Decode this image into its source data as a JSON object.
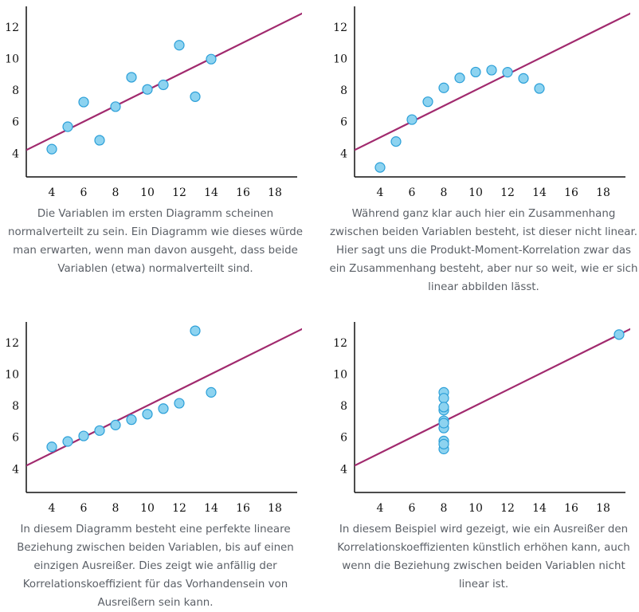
{
  "colors": {
    "regression_line": "#a12a6e",
    "point_fill": "#8dd3f0",
    "point_stroke": "#2b9fd8",
    "caption_text": "#5a5f66"
  },
  "captions": [
    "Die Variablen im ersten Diagramm scheinen normalverteilt zu sein. Ein Diagramm wie dieses würde man erwarten, wenn man davon ausgeht, dass beide Variablen (etwa) normalverteilt sind.",
    "Während ganz klar auch hier ein Zusammenhang zwischen beiden Variablen besteht, ist dieser nicht linear. Hier sagt uns die Produkt-Moment-Korrelation zwar das ein Zusammenhang besteht, aber nur so weit, wie er sich linear abbilden lässt.",
    "In diesem Diagramm besteht eine perfekte lineare Beziehung zwischen beiden Variablen, bis auf einen einzigen Ausreißer. Dies zeigt wie anfällig der Korrelationskoeffizient für das Vorhandensein von Ausreißern sein kann.",
    "In diesem Beispiel wird gezeigt, wie ein Ausreißer den Korrelationskoeffizienten künstlich erhöhen kann, auch wenn die Beziehung zwischen beiden Variablen nicht linear ist."
  ],
  "chart_data": [
    {
      "type": "scatter",
      "xlim": [
        2.4,
        19.4
      ],
      "ylim": [
        2.5,
        13.3
      ],
      "xticks": [
        4,
        6,
        8,
        10,
        12,
        14,
        16,
        18
      ],
      "yticks": [
        4,
        6,
        8,
        10,
        12
      ],
      "points": [
        [
          10,
          8.04
        ],
        [
          8,
          6.95
        ],
        [
          13,
          7.58
        ],
        [
          9,
          8.81
        ],
        [
          11,
          8.33
        ],
        [
          14,
          9.96
        ],
        [
          6,
          7.24
        ],
        [
          4,
          4.26
        ],
        [
          12,
          10.84
        ],
        [
          7,
          4.82
        ],
        [
          5,
          5.68
        ]
      ],
      "regression": {
        "intercept": 3.0,
        "slope": 0.5
      },
      "grid": false
    },
    {
      "type": "scatter",
      "xlim": [
        2.4,
        19.4
      ],
      "ylim": [
        2.5,
        13.3
      ],
      "xticks": [
        4,
        6,
        8,
        10,
        12,
        14,
        16,
        18
      ],
      "yticks": [
        4,
        6,
        8,
        10,
        12
      ],
      "points": [
        [
          10,
          9.14
        ],
        [
          8,
          8.14
        ],
        [
          13,
          8.74
        ],
        [
          9,
          8.77
        ],
        [
          11,
          9.26
        ],
        [
          14,
          8.1
        ],
        [
          6,
          6.13
        ],
        [
          4,
          3.1
        ],
        [
          12,
          9.13
        ],
        [
          7,
          7.26
        ],
        [
          5,
          4.74
        ]
      ],
      "regression": {
        "intercept": 3.0,
        "slope": 0.5
      },
      "grid": false
    },
    {
      "type": "scatter",
      "xlim": [
        2.4,
        19.4
      ],
      "ylim": [
        2.5,
        13.3
      ],
      "xticks": [
        4,
        6,
        8,
        10,
        12,
        14,
        16,
        18
      ],
      "yticks": [
        4,
        6,
        8,
        10,
        12
      ],
      "points": [
        [
          10,
          7.46
        ],
        [
          8,
          6.77
        ],
        [
          13,
          12.74
        ],
        [
          9,
          7.11
        ],
        [
          11,
          7.81
        ],
        [
          14,
          8.84
        ],
        [
          6,
          6.08
        ],
        [
          4,
          5.39
        ],
        [
          12,
          8.15
        ],
        [
          7,
          6.42
        ],
        [
          5,
          5.73
        ]
      ],
      "regression": {
        "intercept": 3.0,
        "slope": 0.5
      },
      "grid": false
    },
    {
      "type": "scatter",
      "xlim": [
        2.4,
        19.4
      ],
      "ylim": [
        2.5,
        13.3
      ],
      "xticks": [
        4,
        6,
        8,
        10,
        12,
        14,
        16,
        18
      ],
      "yticks": [
        4,
        6,
        8,
        10,
        12
      ],
      "points": [
        [
          8,
          6.58
        ],
        [
          8,
          5.76
        ],
        [
          8,
          7.71
        ],
        [
          8,
          8.84
        ],
        [
          8,
          8.47
        ],
        [
          8,
          7.04
        ],
        [
          8,
          5.25
        ],
        [
          19,
          12.5
        ],
        [
          8,
          5.56
        ],
        [
          8,
          7.91
        ],
        [
          8,
          6.89
        ]
      ],
      "regression": {
        "intercept": 3.0,
        "slope": 0.5
      },
      "grid": false
    }
  ]
}
